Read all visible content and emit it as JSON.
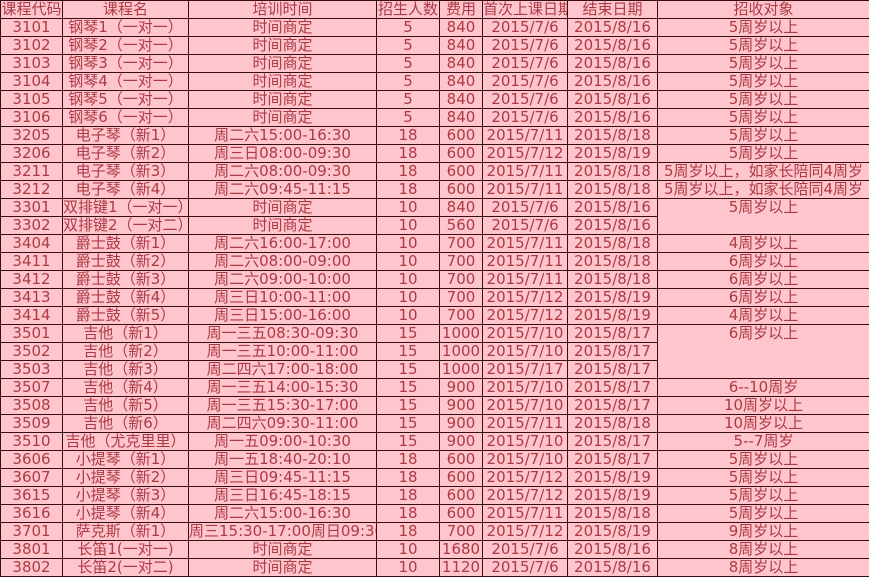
{
  "colors": {
    "cell_bg": "#FFC5CD",
    "text_color": "#AC3A43",
    "border_color": "#3B0D12"
  },
  "table": {
    "headers": [
      "课程代码",
      "课程名",
      "培训时间",
      "招生人数",
      "费用",
      "首次上课日期",
      "结束日期",
      "招收对象"
    ],
    "rows": [
      {
        "code": "3101",
        "name": "钢琴1（一对一）",
        "time": "时间商定",
        "count": "5",
        "fee": "840",
        "start": "2015/7/6",
        "end": "2015/8/16",
        "audience": "5周岁以上"
      },
      {
        "code": "3102",
        "name": "钢琴2（一对一）",
        "time": "时间商定",
        "count": "5",
        "fee": "840",
        "start": "2015/7/6",
        "end": "2015/8/16",
        "audience": "5周岁以上"
      },
      {
        "code": "3103",
        "name": "钢琴3（一对一）",
        "time": "时间商定",
        "count": "5",
        "fee": "840",
        "start": "2015/7/6",
        "end": "2015/8/16",
        "audience": "5周岁以上"
      },
      {
        "code": "3104",
        "name": "钢琴4（一对一）",
        "time": "时间商定",
        "count": "5",
        "fee": "840",
        "start": "2015/7/6",
        "end": "2015/8/16",
        "audience": "5周岁以上"
      },
      {
        "code": "3105",
        "name": "钢琴5（一对一）",
        "time": "时间商定",
        "count": "5",
        "fee": "840",
        "start": "2015/7/6",
        "end": "2015/8/16",
        "audience": "5周岁以上"
      },
      {
        "code": "3106",
        "name": "钢琴6（一对一）",
        "time": "时间商定",
        "count": "5",
        "fee": "840",
        "start": "2015/7/6",
        "end": "2015/8/16",
        "audience": "5周岁以上"
      },
      {
        "code": "3205",
        "name": "电子琴（新1）",
        "time": "周二六15:00-16:30",
        "count": "18",
        "fee": "600",
        "start": "2015/7/11",
        "end": "2015/8/18",
        "audience": "5周岁以上"
      },
      {
        "code": "3206",
        "name": "电子琴（新2）",
        "time": "周三日08:00-09:30",
        "count": "18",
        "fee": "600",
        "start": "2015/7/12",
        "end": "2015/8/19",
        "audience": "5周岁以上"
      },
      {
        "code": "3211",
        "name": "电子琴（新3）",
        "time": "周二六08:00-09:30",
        "count": "18",
        "fee": "600",
        "start": "2015/7/11",
        "end": "2015/8/18",
        "audience": "5周岁以上，如家长陪同4周岁"
      },
      {
        "code": "3212",
        "name": "电子琴（新4）",
        "time": "周二六09:45-11:15",
        "count": "18",
        "fee": "600",
        "start": "2015/7/11",
        "end": "2015/8/18",
        "audience": "5周岁以上，如家长陪同4周岁"
      },
      {
        "code": "3301",
        "name": "双排键1（一对一）",
        "time": "时间商定",
        "count": "10",
        "fee": "840",
        "start": "2015/7/6",
        "end": "2015/8/16",
        "audience": "5周岁以上",
        "audience_rowspan": 2
      },
      {
        "code": "3302",
        "name": "双排键2（一对二）",
        "time": "时间商定",
        "count": "10",
        "fee": "560",
        "start": "2015/7/6",
        "end": "2015/8/16",
        "audience": null
      },
      {
        "code": "3404",
        "name": "爵士鼓（新1）",
        "time": "周二六16:00-17:00",
        "count": "10",
        "fee": "700",
        "start": "2015/7/11",
        "end": "2015/8/18",
        "audience": "4周岁以上"
      },
      {
        "code": "3411",
        "name": "爵士鼓（新2）",
        "time": "周二六08:00-09:00",
        "count": "10",
        "fee": "700",
        "start": "2015/7/11",
        "end": "2015/8/18",
        "audience": "6周岁以上"
      },
      {
        "code": "3412",
        "name": "爵士鼓（新3）",
        "time": "周二六09:00-10:00",
        "count": "10",
        "fee": "700",
        "start": "2015/7/11",
        "end": "2015/8/18",
        "audience": "6周岁以上"
      },
      {
        "code": "3413",
        "name": "爵士鼓（新4）",
        "time": "周三日10:00-11:00",
        "count": "10",
        "fee": "700",
        "start": "2015/7/12",
        "end": "2015/8/19",
        "audience": "6周岁以上"
      },
      {
        "code": "3414",
        "name": "爵士鼓（新5）",
        "time": "周三日15:00-16:00",
        "count": "10",
        "fee": "700",
        "start": "2015/7/12",
        "end": "2015/8/19",
        "audience": "4周岁以上"
      },
      {
        "code": "3501",
        "name": "吉他（新1）",
        "time": "周一三五08:30-09:30",
        "count": "15",
        "fee": "1000",
        "start": "2015/7/10",
        "end": "2015/8/17",
        "audience": "6周岁以上",
        "audience_rowspan": 3
      },
      {
        "code": "3502",
        "name": "吉他（新2）",
        "time": "周一三五10:00-11:00",
        "count": "15",
        "fee": "1000",
        "start": "2015/7/10",
        "end": "2015/8/17",
        "audience": null
      },
      {
        "code": "3503",
        "name": "吉他（新3）",
        "time": "周二四六17:00-18:00",
        "count": "15",
        "fee": "1000",
        "start": "2015/7/17",
        "end": "2015/8/17",
        "audience": null
      },
      {
        "code": "3507",
        "name": "吉他（新4）",
        "time": "周一三五14:00-15:30",
        "count": "15",
        "fee": "900",
        "start": "2015/7/10",
        "end": "2015/8/17",
        "audience": "6--10周岁"
      },
      {
        "code": "3508",
        "name": "吉他（新5）",
        "time": "周一三五15:30-17:00",
        "count": "15",
        "fee": "900",
        "start": "2015/7/10",
        "end": "2015/8/17",
        "audience": "10周岁以上"
      },
      {
        "code": "3509",
        "name": "吉他（新6）",
        "time": "周二四六09:30-11:00",
        "count": "15",
        "fee": "900",
        "start": "2015/7/11",
        "end": "2015/8/18",
        "audience": "10周岁以上"
      },
      {
        "code": "3510",
        "name": "吉他（尤克里里）",
        "time": "周一五09:00-10:30",
        "count": "15",
        "fee": "900",
        "start": "2015/7/10",
        "end": "2015/8/17",
        "audience": "5--7周岁"
      },
      {
        "code": "3606",
        "name": "小提琴（新1）",
        "time": "周一五18:40-20:10",
        "count": "18",
        "fee": "600",
        "start": "2015/7/10",
        "end": "2015/8/17",
        "audience": "5周岁以上"
      },
      {
        "code": "3607",
        "name": "小提琴（新2）",
        "time": "周三日09:45-11:15",
        "count": "18",
        "fee": "600",
        "start": "2015/7/12",
        "end": "2015/8/19",
        "audience": "5周岁以上"
      },
      {
        "code": "3615",
        "name": "小提琴（新3）",
        "time": "周三日16:45-18:15",
        "count": "18",
        "fee": "600",
        "start": "2015/7/12",
        "end": "2015/8/19",
        "audience": "5周岁以上"
      },
      {
        "code": "3616",
        "name": "小提琴（新4）",
        "time": "周二六15:00-16:30",
        "count": "18",
        "fee": "600",
        "start": "2015/7/11",
        "end": "2015/8/18",
        "audience": "5周岁以上"
      },
      {
        "code": "3701",
        "name": "萨克斯（新1）",
        "time": "周三15:30-17:00周日09:30-11:00",
        "count": "18",
        "fee": "700",
        "start": "2015/7/12",
        "end": "2015/8/19",
        "audience": "9周岁以上"
      },
      {
        "code": "3801",
        "name": "长笛1(一对一)",
        "time": "时间商定",
        "count": "10",
        "fee": "1680",
        "start": "2015/7/6",
        "end": "2015/8/16",
        "audience": "8周岁以上"
      },
      {
        "code": "3802",
        "name": "长笛2(一对二)",
        "time": "时间商定",
        "count": "10",
        "fee": "1120",
        "start": "2015/7/6",
        "end": "2015/8/16",
        "audience": "8周岁以上"
      }
    ]
  }
}
